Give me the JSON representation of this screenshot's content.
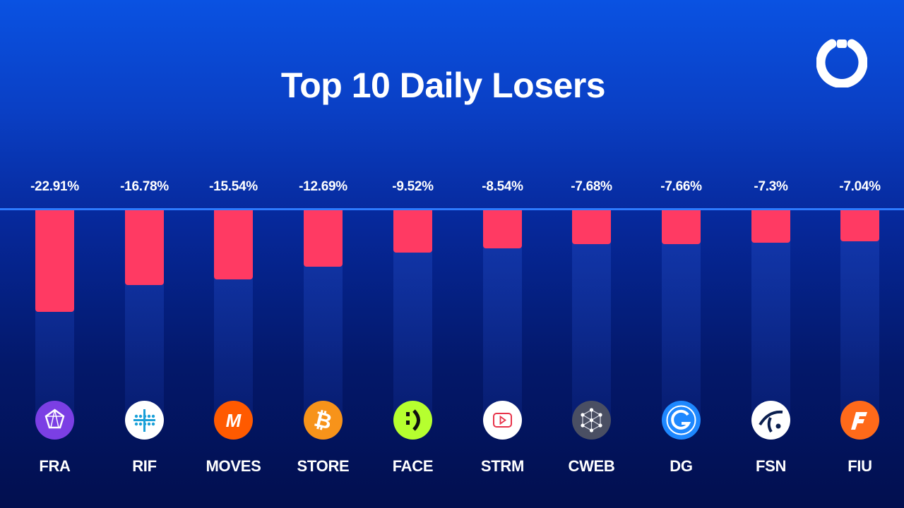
{
  "header": {
    "title": "Top 10 Daily Losers",
    "logo_icon": "brand-ring-logo"
  },
  "colors": {
    "loss_bar": "#ff3a63",
    "baseline": "#2d7bff",
    "background_top": "#0a52e2",
    "background_bottom": "#020f4f"
  },
  "chart_data": {
    "type": "bar",
    "orientation": "vertical-downward",
    "title": "Top 10 Daily Losers",
    "categories": [
      "FRA",
      "RIF",
      "MOVES",
      "STORE",
      "FACE",
      "STRM",
      "CWEB",
      "DG",
      "FSN",
      "FIU"
    ],
    "values": [
      -22.91,
      -16.78,
      -15.54,
      -12.69,
      -9.52,
      -8.54,
      -7.68,
      -7.66,
      -7.3,
      -7.04
    ],
    "value_labels": [
      "-22.91%",
      "-16.78%",
      "-15.54%",
      "-12.69%",
      "-9.52%",
      "-8.54%",
      "-7.68%",
      "-7.66%",
      "-7.3%",
      "-7.04%"
    ],
    "unit": "%",
    "ylim": [
      -50,
      0
    ],
    "grid": false,
    "legend": "none",
    "icons": [
      "fra-gem-icon",
      "rif-network-icon",
      "moves-m-icon",
      "store-bitcoin-icon",
      "face-smiley-icon",
      "strm-play-icon",
      "cweb-nodes-icon",
      "dg-circle-icon",
      "fsn-swoosh-icon",
      "fiu-f-icon"
    ],
    "icon_colors": [
      "#7b3fe4",
      "#ffffff",
      "#ff5a00",
      "#f7931a",
      "#b6ff2f",
      "#ffffff",
      "#4a4f63",
      "#1e88ff",
      "#ffffff",
      "#ff6a1a"
    ]
  }
}
